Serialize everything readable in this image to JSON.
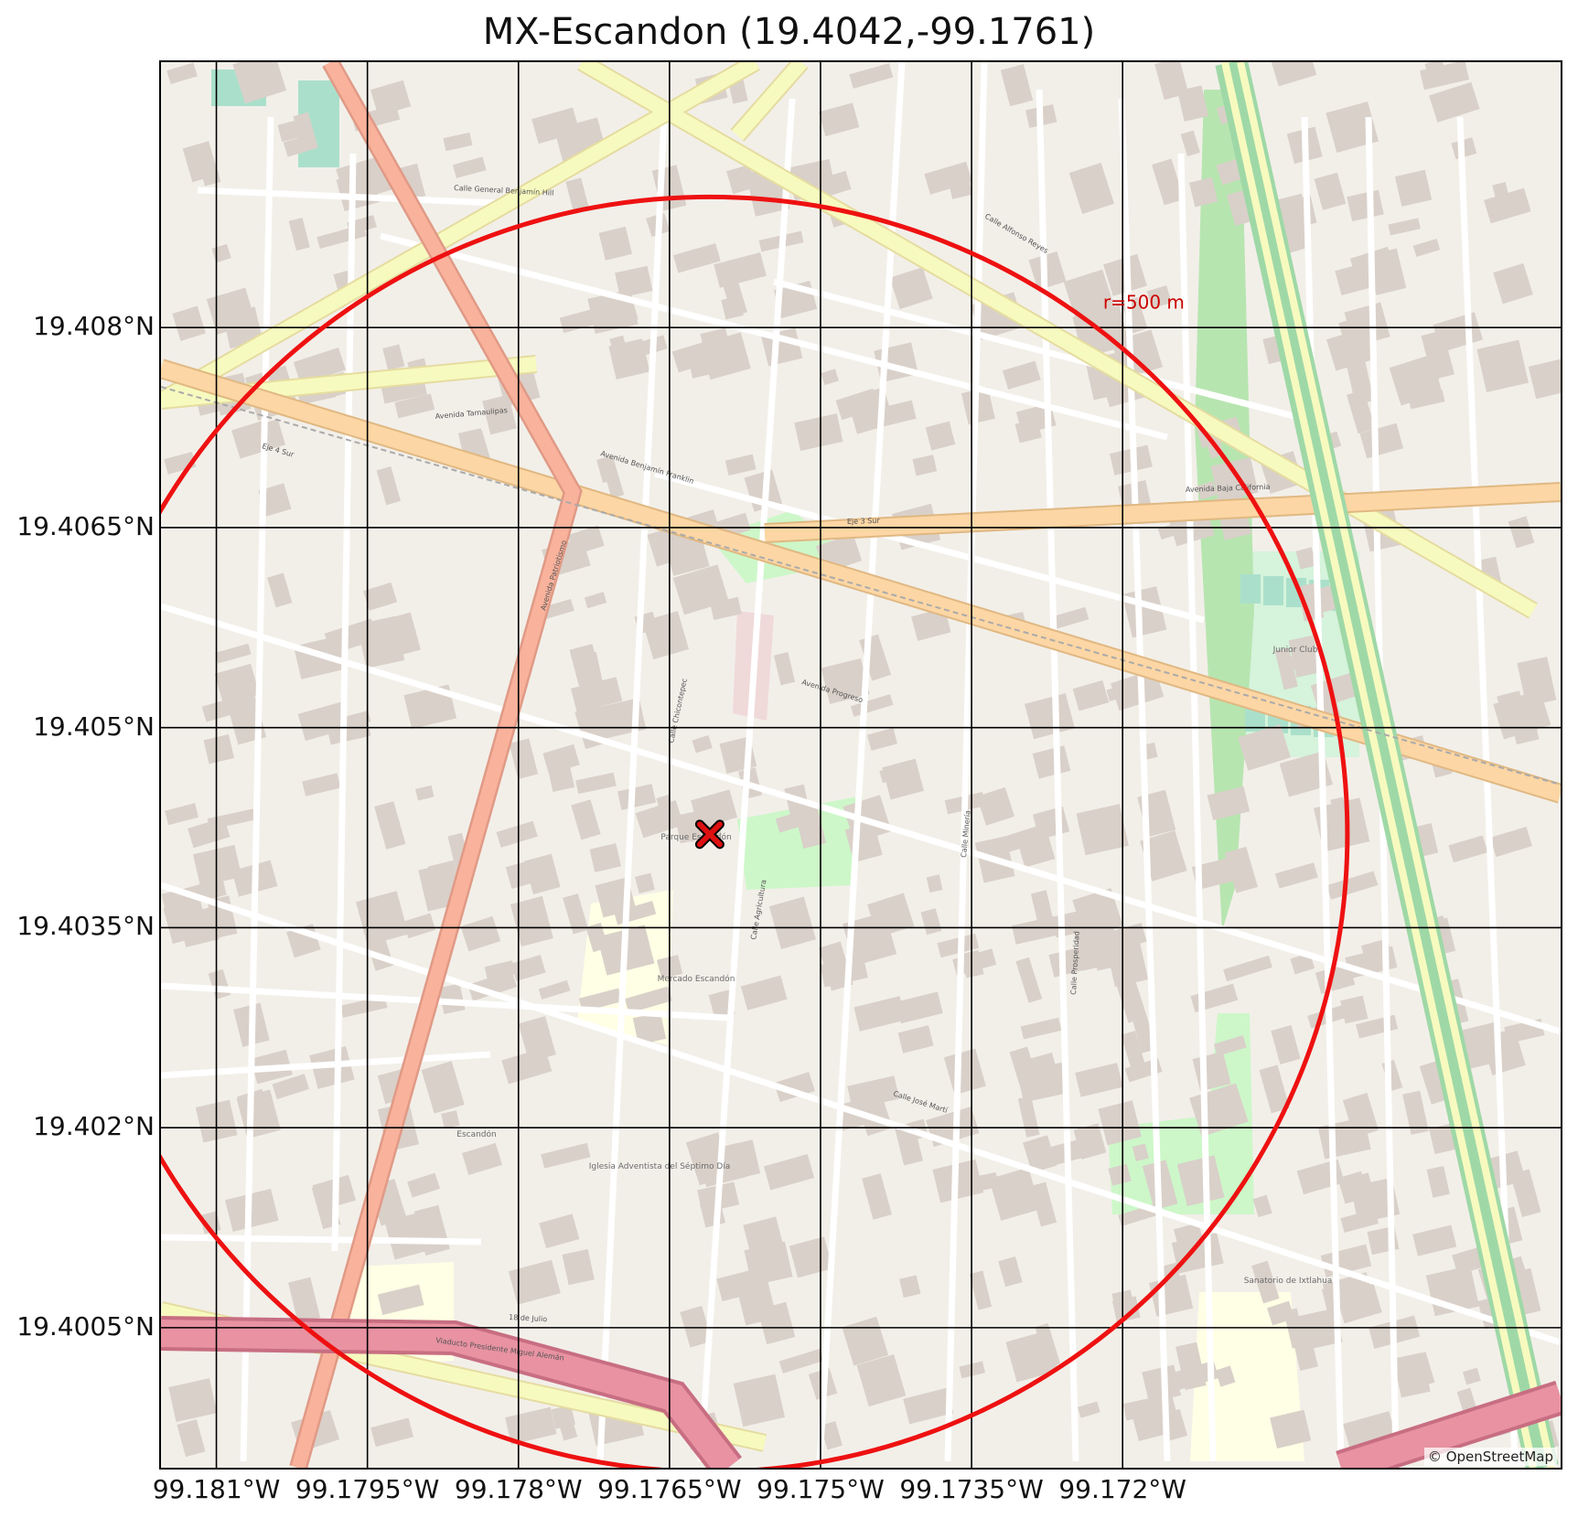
{
  "title": "MX-Escandon (19.4042,-99.1761)",
  "center": {
    "lat": 19.4042,
    "lon": -99.1761
  },
  "radius_label": "r=500 m",
  "attribution": "© OpenStreetMap",
  "y_ticks": [
    {
      "value": 19.408,
      "label": "19.408°N"
    },
    {
      "value": 19.4065,
      "label": "19.4065°N"
    },
    {
      "value": 19.405,
      "label": "19.405°N"
    },
    {
      "value": 19.4035,
      "label": "19.4035°N"
    },
    {
      "value": 19.402,
      "label": "19.402°N"
    },
    {
      "value": 19.4005,
      "label": "19.4005°N"
    }
  ],
  "x_ticks": [
    {
      "value": -99.181,
      "label": "99.181°W"
    },
    {
      "value": -99.1795,
      "label": "99.1795°W"
    },
    {
      "value": -99.178,
      "label": "99.178°W"
    },
    {
      "value": -99.1765,
      "label": "99.1765°W"
    },
    {
      "value": -99.175,
      "label": "99.175°W"
    },
    {
      "value": -99.1735,
      "label": "99.1735°W"
    },
    {
      "value": -99.172,
      "label": "99.172°W"
    }
  ],
  "colors": {
    "circle": "#ee1111",
    "marker": "#dd1111",
    "grid": "#000000",
    "map_bg": "#f2efe9",
    "building": "#d9d0c9",
    "primary_road": "#fcd6a4",
    "secondary_road": "#f7fabf",
    "trunk_road": "#f9b29c",
    "motorway": "#e892a2",
    "park": "#cdf7c9",
    "pitch": "#aae0cb",
    "school": "#ffffe5"
  },
  "street_labels": [
    "Avenida Benjamín Franklin",
    "Avenida Baja California",
    "Avenida Progreso",
    "Calle José Martí",
    "Calle Alfonso Reyes",
    "Avenida Tamaulipas",
    "Avenida Patriotismo",
    "Viaducto Presidente Miguel Alemán",
    "Calle General Benjamín Hill",
    "Calle Chicontepec",
    "Calle Agricultura",
    "Calle Minería",
    "Calle Prosperidad",
    "Eje 4 Sur",
    "Eje 3 Sur",
    "18 de Julio"
  ],
  "place_labels": [
    "Parque Escandón",
    "Junior Club",
    "Mercado Escandón",
    "Escandón",
    "Sanatorio de Ixtlahua",
    "Iglesia Adventista del Séptimo Día"
  ]
}
